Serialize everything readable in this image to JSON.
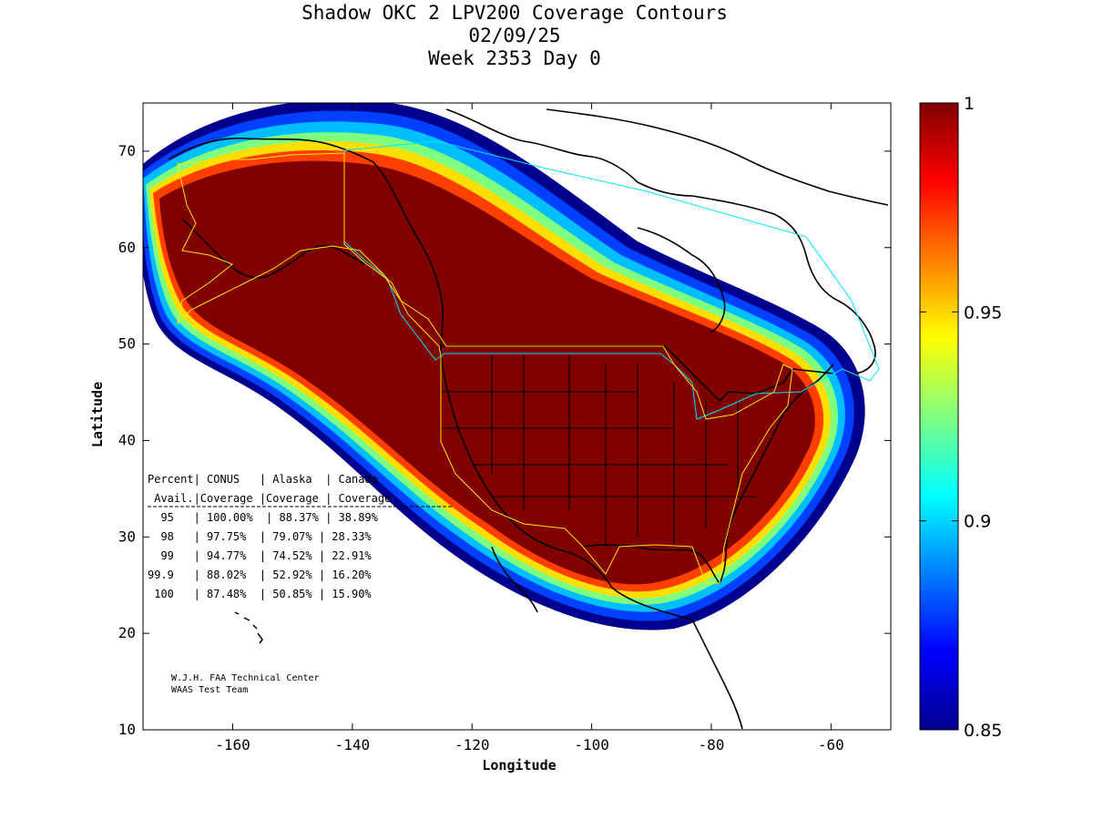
{
  "title": {
    "line1": "Shadow OKC 2 LPV200 Coverage Contours",
    "line2": "02/09/25",
    "line3": "Week 2353 Day 0"
  },
  "axes": {
    "xlabel": "Longitude",
    "ylabel": "Latitude",
    "xlim": [
      -175,
      -50
    ],
    "ylim": [
      10,
      75
    ],
    "xticks": [
      -160,
      -140,
      -120,
      -100,
      -80,
      -60
    ],
    "yticks": [
      10,
      20,
      30,
      40,
      50,
      60,
      70
    ]
  },
  "colorbar": {
    "min": 0.85,
    "max": 1,
    "ticks": [
      "1",
      "0.95",
      "0.9",
      "0.85"
    ],
    "tick_values": [
      1,
      0.95,
      0.9,
      0.85
    ]
  },
  "table": {
    "header1": "Percent| CONUS   | Alaska  | Canada",
    "header2": " Avail.|Coverage |Coverage | Coverage",
    "rows": [
      "  95   | 100.00%  | 88.37% | 38.89%",
      "  98   | 97.75%  | 79.07% | 28.33%",
      "  99   | 94.77%  | 74.52% | 22.91%",
      "99.9   | 88.02%  | 52.92% | 16.20%",
      " 100   | 87.48%  | 50.85% | 15.90%"
    ]
  },
  "credit": {
    "line1": "W.J.H. FAA Technical Center",
    "line2": "WAAS Test Team"
  },
  "chart_data": {
    "type": "heatmap",
    "title": "Shadow OKC 2 LPV200 Coverage Contours",
    "xlabel": "Longitude",
    "ylabel": "Latitude",
    "xlim": [
      -175,
      -50
    ],
    "ylim": [
      10,
      75
    ],
    "value_range": [
      0.85,
      1
    ],
    "series": [
      {
        "name": "CONUS",
        "percent_avail": [
          95,
          98,
          99,
          99.9,
          100
        ],
        "coverage_pct": [
          100.0,
          97.75,
          94.77,
          88.02,
          87.48
        ]
      },
      {
        "name": "Alaska",
        "percent_avail": [
          95,
          98,
          99,
          99.9,
          100
        ],
        "coverage_pct": [
          88.37,
          79.07,
          74.52,
          52.92,
          50.85
        ]
      },
      {
        "name": "Canada",
        "percent_avail": [
          95,
          98,
          99,
          99.9,
          100
        ],
        "coverage_pct": [
          38.89,
          28.33,
          22.91,
          16.2,
          15.9
        ]
      }
    ]
  }
}
